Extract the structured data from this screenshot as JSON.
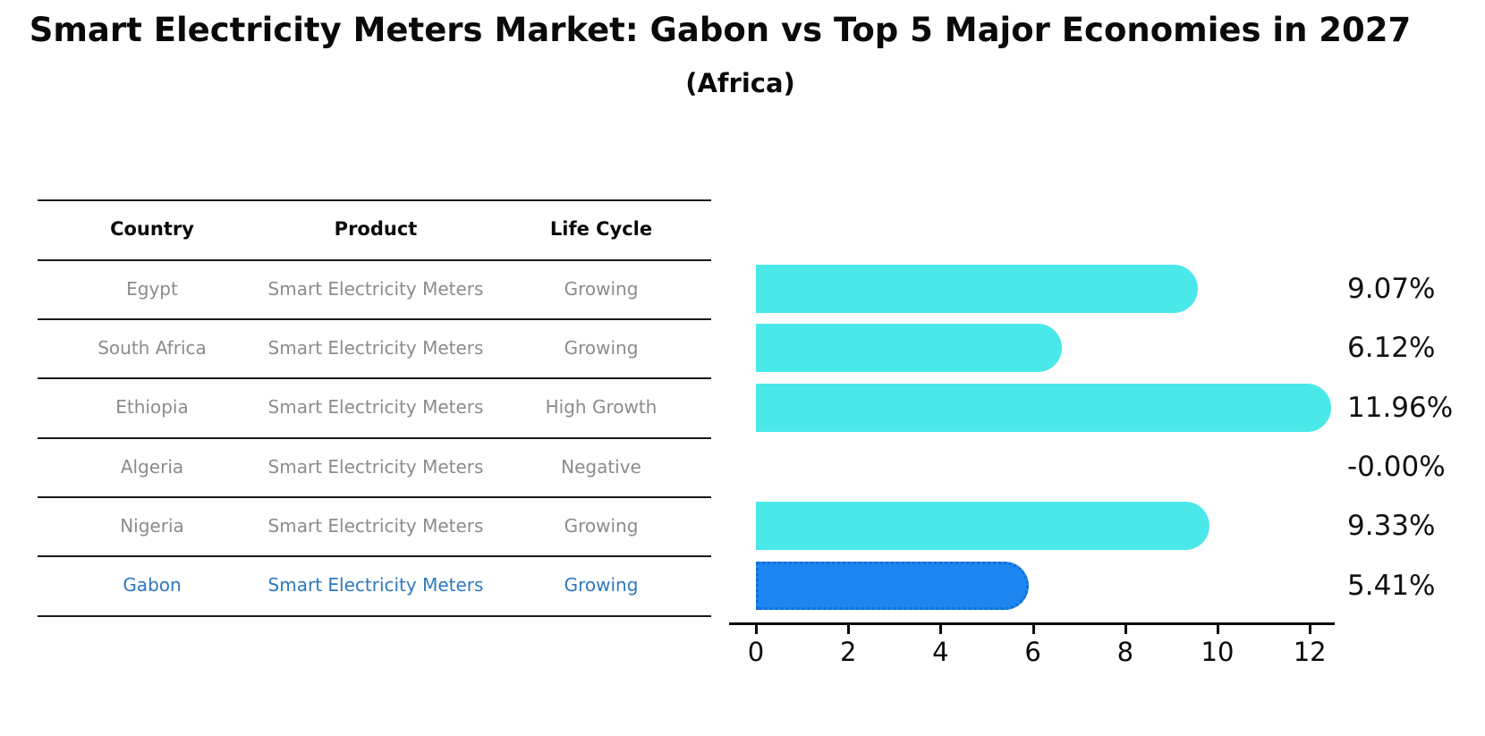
{
  "header": {
    "title": "Smart Electricity Meters Market: Gabon vs Top 5 Major Economies in 2027",
    "subtitle": "(Africa)"
  },
  "table": {
    "columns": [
      "Country",
      "Product",
      "Life Cycle"
    ],
    "rows": [
      {
        "country": "Egypt",
        "product": "Smart Electricity Meters",
        "life_cycle": "Growing",
        "highlighted": false
      },
      {
        "country": "South Africa",
        "product": "Smart Electricity Meters",
        "life_cycle": "Growing",
        "highlighted": false
      },
      {
        "country": "Ethiopia",
        "product": "Smart Electricity Meters",
        "life_cycle": "High Growth",
        "highlighted": false
      },
      {
        "country": "Algeria",
        "product": "Smart Electricity Meters",
        "life_cycle": "Negative",
        "highlighted": false
      },
      {
        "country": "Nigeria",
        "product": "Smart Electricity Meters",
        "life_cycle": "Growing",
        "highlighted": false
      },
      {
        "country": "Gabon",
        "product": "Smart Electricity Meters",
        "life_cycle": "Growing",
        "highlighted": true
      }
    ]
  },
  "chart_data": {
    "type": "bar",
    "orientation": "horizontal",
    "title": "Smart Electricity Meters Market: Gabon vs Top 5 Major Economies in 2027 (Africa)",
    "categories": [
      "Egypt",
      "South Africa",
      "Ethiopia",
      "Algeria",
      "Nigeria",
      "Gabon"
    ],
    "values": [
      9.07,
      6.12,
      11.96,
      -0.0,
      9.33,
      5.41
    ],
    "value_labels": [
      "9.07%",
      "6.12%",
      "11.96%",
      "-0.00%",
      "9.33%",
      "5.41%"
    ],
    "x_ticks": [
      0,
      2,
      4,
      6,
      8,
      10,
      12
    ],
    "xlim": [
      0,
      12.6
    ],
    "grid": false,
    "legend": false,
    "bar_color": "#4be8ea",
    "highlight_color": "#1e86f0",
    "highlight_index": 5,
    "highlight_text_color": "#2e79be",
    "xlabel": "",
    "ylabel": ""
  }
}
